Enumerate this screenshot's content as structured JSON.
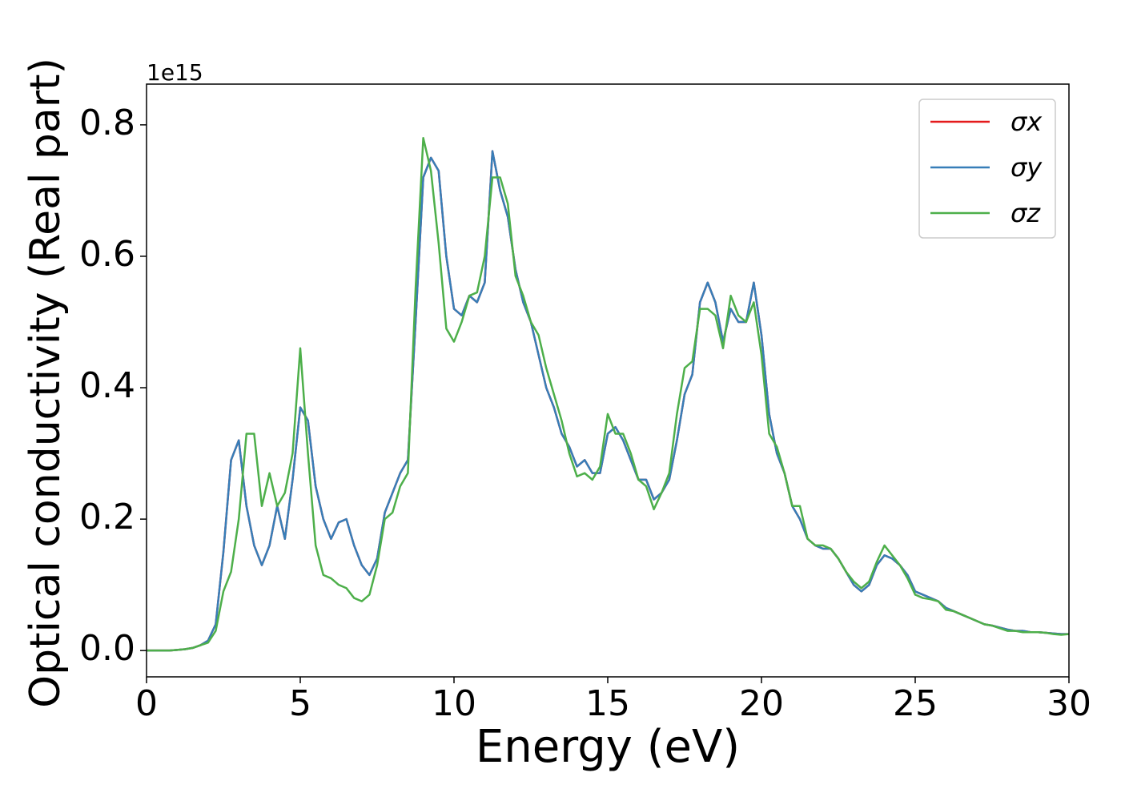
{
  "chart_data": {
    "type": "line",
    "xlabel": "Energy (eV)",
    "ylabel": "Optical conductivity (Real part)",
    "y_offset_label": "1e15",
    "xlim": [
      0,
      30
    ],
    "ylim": [
      -0.04,
      0.862
    ],
    "xticks": [
      0,
      5,
      10,
      15,
      20,
      25,
      30
    ],
    "yticks": [
      {
        "value": 0,
        "label": "0.0"
      },
      0.2,
      0.4,
      0.6,
      0.8
    ],
    "legend": "upper right",
    "x": [
      0,
      0.25,
      0.5,
      0.75,
      1,
      1.25,
      1.5,
      1.75,
      2,
      2.25,
      2.5,
      2.75,
      3,
      3.25,
      3.5,
      3.75,
      4,
      4.25,
      4.5,
      4.75,
      5,
      5.25,
      5.5,
      5.75,
      6,
      6.25,
      6.5,
      6.75,
      7,
      7.25,
      7.5,
      7.75,
      8,
      8.25,
      8.5,
      8.75,
      9,
      9.25,
      9.5,
      9.75,
      10,
      10.25,
      10.5,
      10.75,
      11,
      11.25,
      11.5,
      11.75,
      12,
      12.25,
      12.5,
      12.75,
      13,
      13.25,
      13.5,
      13.75,
      14,
      14.25,
      14.5,
      14.75,
      15,
      15.25,
      15.5,
      15.75,
      16,
      16.25,
      16.5,
      16.75,
      17,
      17.25,
      17.5,
      17.75,
      18,
      18.25,
      18.5,
      18.75,
      19,
      19.25,
      19.5,
      19.75,
      20,
      20.25,
      20.5,
      20.75,
      21,
      21.25,
      21.5,
      21.75,
      22,
      22.25,
      22.5,
      22.75,
      23,
      23.25,
      23.5,
      23.75,
      24,
      24.25,
      24.5,
      24.75,
      25,
      25.25,
      25.5,
      25.75,
      26,
      26.25,
      26.5,
      26.75,
      27,
      27.25,
      27.5,
      27.75,
      28,
      28.25,
      28.5,
      28.75,
      29,
      29.25,
      29.5,
      29.75,
      30
    ],
    "series": [
      {
        "name": "σx",
        "color": "#e41a1c",
        "values": [
          0,
          0,
          0,
          0,
          0.001,
          0.002,
          0.004,
          0.008,
          0.015,
          0.04,
          0.15,
          0.29,
          0.32,
          0.22,
          0.16,
          0.13,
          0.16,
          0.22,
          0.17,
          0.26,
          0.37,
          0.35,
          0.25,
          0.2,
          0.17,
          0.195,
          0.2,
          0.16,
          0.13,
          0.115,
          0.14,
          0.21,
          0.24,
          0.27,
          0.29,
          0.5,
          0.72,
          0.75,
          0.73,
          0.6,
          0.52,
          0.51,
          0.54,
          0.53,
          0.56,
          0.76,
          0.7,
          0.66,
          0.58,
          0.53,
          0.5,
          0.45,
          0.4,
          0.37,
          0.33,
          0.31,
          0.28,
          0.29,
          0.27,
          0.27,
          0.33,
          0.34,
          0.32,
          0.29,
          0.26,
          0.26,
          0.23,
          0.24,
          0.26,
          0.32,
          0.39,
          0.42,
          0.53,
          0.56,
          0.53,
          0.47,
          0.52,
          0.5,
          0.5,
          0.56,
          0.48,
          0.36,
          0.3,
          0.27,
          0.22,
          0.2,
          0.17,
          0.16,
          0.155,
          0.155,
          0.14,
          0.12,
          0.1,
          0.09,
          0.1,
          0.13,
          0.145,
          0.14,
          0.13,
          0.115,
          0.09,
          0.085,
          0.08,
          0.075,
          0.065,
          0.06,
          0.055,
          0.05,
          0.045,
          0.04,
          0.038,
          0.035,
          0.032,
          0.03,
          0.03,
          0.028,
          0.028,
          0.027,
          0.026,
          0.025,
          0.025
        ]
      },
      {
        "name": "σy",
        "color": "#377eb8",
        "values": [
          0,
          0,
          0,
          0,
          0.001,
          0.002,
          0.004,
          0.008,
          0.015,
          0.04,
          0.15,
          0.29,
          0.32,
          0.22,
          0.16,
          0.13,
          0.16,
          0.22,
          0.17,
          0.26,
          0.37,
          0.35,
          0.25,
          0.2,
          0.17,
          0.195,
          0.2,
          0.16,
          0.13,
          0.115,
          0.14,
          0.21,
          0.24,
          0.27,
          0.29,
          0.5,
          0.72,
          0.75,
          0.73,
          0.6,
          0.52,
          0.51,
          0.54,
          0.53,
          0.56,
          0.76,
          0.7,
          0.66,
          0.58,
          0.53,
          0.5,
          0.45,
          0.4,
          0.37,
          0.33,
          0.31,
          0.28,
          0.29,
          0.27,
          0.27,
          0.33,
          0.34,
          0.32,
          0.29,
          0.26,
          0.26,
          0.23,
          0.24,
          0.26,
          0.32,
          0.39,
          0.42,
          0.53,
          0.56,
          0.53,
          0.47,
          0.52,
          0.5,
          0.5,
          0.56,
          0.48,
          0.36,
          0.3,
          0.27,
          0.22,
          0.2,
          0.17,
          0.16,
          0.155,
          0.155,
          0.14,
          0.12,
          0.1,
          0.09,
          0.1,
          0.13,
          0.145,
          0.14,
          0.13,
          0.115,
          0.09,
          0.085,
          0.08,
          0.075,
          0.065,
          0.06,
          0.055,
          0.05,
          0.045,
          0.04,
          0.038,
          0.035,
          0.032,
          0.03,
          0.03,
          0.028,
          0.028,
          0.027,
          0.026,
          0.025,
          0.025
        ]
      },
      {
        "name": "σz",
        "color": "#4daf4a",
        "values": [
          0,
          0,
          0,
          0,
          0.001,
          0.002,
          0.004,
          0.008,
          0.012,
          0.03,
          0.09,
          0.12,
          0.2,
          0.33,
          0.33,
          0.22,
          0.27,
          0.22,
          0.24,
          0.3,
          0.46,
          0.3,
          0.16,
          0.115,
          0.11,
          0.1,
          0.095,
          0.08,
          0.075,
          0.085,
          0.13,
          0.2,
          0.21,
          0.25,
          0.27,
          0.55,
          0.78,
          0.73,
          0.62,
          0.49,
          0.47,
          0.5,
          0.54,
          0.545,
          0.6,
          0.72,
          0.72,
          0.68,
          0.57,
          0.54,
          0.5,
          0.48,
          0.43,
          0.39,
          0.35,
          0.3,
          0.265,
          0.27,
          0.26,
          0.28,
          0.36,
          0.33,
          0.33,
          0.3,
          0.26,
          0.25,
          0.215,
          0.24,
          0.27,
          0.36,
          0.43,
          0.44,
          0.52,
          0.52,
          0.51,
          0.46,
          0.54,
          0.51,
          0.5,
          0.53,
          0.45,
          0.33,
          0.31,
          0.27,
          0.22,
          0.22,
          0.17,
          0.16,
          0.16,
          0.155,
          0.14,
          0.12,
          0.105,
          0.095,
          0.105,
          0.135,
          0.16,
          0.145,
          0.13,
          0.11,
          0.085,
          0.08,
          0.078,
          0.075,
          0.062,
          0.06,
          0.055,
          0.05,
          0.045,
          0.04,
          0.038,
          0.034,
          0.03,
          0.03,
          0.028,
          0.028,
          0.028,
          0.027,
          0.025,
          0.024,
          0.025
        ]
      }
    ]
  }
}
